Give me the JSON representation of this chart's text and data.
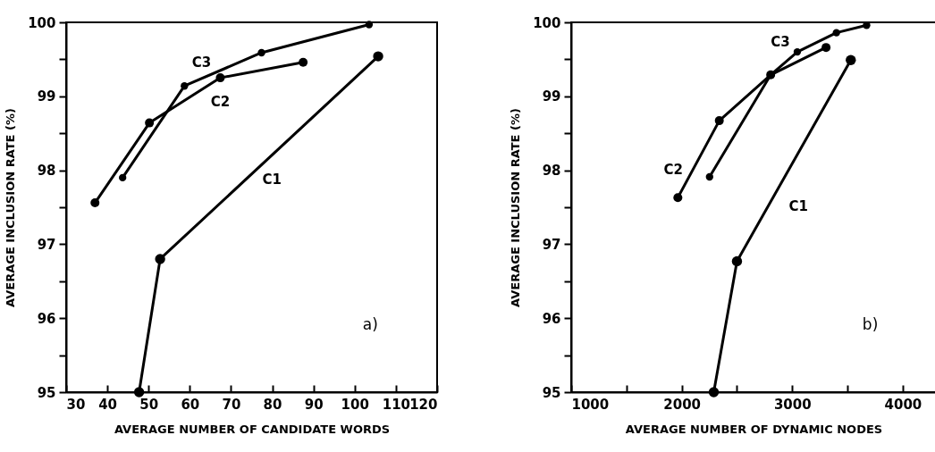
{
  "chart_data": [
    {
      "type": "line",
      "xlabel": "AVERAGE NUMBER OF CANDIDATE WORDS",
      "ylabel": "AVERAGE INCLUSION RATE (%)",
      "marker": "circle",
      "xlim": [
        30,
        120
      ],
      "xticks": [
        30,
        40,
        50,
        60,
        70,
        80,
        90,
        100,
        110,
        120
      ],
      "ylim": [
        95,
        100
      ],
      "yticks": [
        95,
        {
          "value": 95.5,
          "label": null
        },
        96,
        {
          "value": 96.5,
          "label": null
        },
        97,
        {
          "value": 97.5,
          "label": null
        },
        98,
        {
          "value": 98.5,
          "label": null
        },
        99,
        {
          "value": 99.5,
          "label": null
        },
        100
      ],
      "series": [
        {
          "name": "C1",
          "color": "#000000",
          "x": [
            47.7,
            52.8,
            105.7
          ],
          "values": [
            95,
            96.8,
            99.54
          ]
        },
        {
          "name": "C2",
          "color": "#000000",
          "x": [
            37,
            50.2,
            67.4,
            87.5
          ],
          "values": [
            97.56,
            98.64,
            99.25,
            99.46
          ]
        },
        {
          "name": "C3",
          "color": "#000000",
          "x": [
            43.7,
            58.7,
            77.4,
            103.5
          ],
          "values": [
            97.9,
            99.14,
            99.59,
            99.97
          ]
        }
      ],
      "annotations": [
        "a)"
      ]
    },
    {
      "type": "line",
      "xlabel": "AVERAGE NUMBER OF DYNAMIC NODES",
      "ylabel": "AVERAGE INCLUSION RATE (%)",
      "marker": "circle",
      "xlim": [
        1000,
        4300
      ],
      "xticks": [
        1000,
        {
          "value": 1500,
          "label": null
        },
        2000,
        {
          "value": 2500,
          "label": null
        },
        3000,
        {
          "value": 3500,
          "label": null
        },
        4000
      ],
      "ylim": [
        95,
        100
      ],
      "yticks": [
        95,
        {
          "value": 95.5,
          "label": null
        },
        96,
        {
          "value": 96.5,
          "label": null
        },
        97,
        {
          "value": 97.5,
          "label": null
        },
        98,
        {
          "value": 98.5,
          "label": null
        },
        99,
        {
          "value": 99.5,
          "label": null
        },
        100
      ],
      "series": [
        {
          "name": "C1",
          "color": "#000000",
          "x": [
            2290,
            2500,
            3530
          ],
          "values": [
            95,
            96.77,
            99.49
          ]
        },
        {
          "name": "C2",
          "color": "#000000",
          "x": [
            1965,
            2340,
            2805,
            3306
          ],
          "values": [
            97.63,
            98.67,
            99.29,
            99.66
          ]
        },
        {
          "name": "C3",
          "color": "#000000",
          "x": [
            2252,
            2805,
            3046,
            3400,
            3673
          ],
          "values": [
            97.91,
            99.29,
            99.6,
            99.86,
            99.96
          ]
        }
      ],
      "annotations": [
        "b)"
      ]
    }
  ]
}
